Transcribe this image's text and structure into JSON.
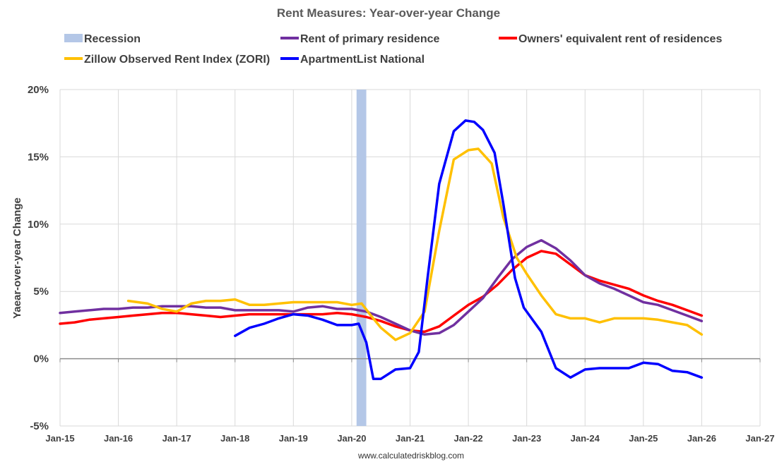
{
  "chart_data": {
    "type": "line",
    "title": "Rent Measures: Year-over-year Change",
    "ylabel": "Yaear-over-year Change",
    "xlabel": "",
    "source": "www.calculatedriskblog.com",
    "ylim": [
      -5,
      20
    ],
    "yticks": [
      -5,
      0,
      5,
      10,
      15,
      20
    ],
    "ytick_labels": [
      "-5%",
      "0%",
      "5%",
      "10%",
      "15%",
      "20%"
    ],
    "xlim": [
      2015,
      2027
    ],
    "xticks": [
      2015,
      2016,
      2017,
      2018,
      2019,
      2020,
      2021,
      2022,
      2023,
      2024,
      2025,
      2026,
      2027
    ],
    "xtick_labels": [
      "Jan-15",
      "Jan-16",
      "Jan-17",
      "Jan-18",
      "Jan-19",
      "Jan-20",
      "Jan-21",
      "Jan-22",
      "Jan-23",
      "Jan-24",
      "Jan-25",
      "Jan-26",
      "Jan-27"
    ],
    "grid": true,
    "recession": {
      "label": "Recession",
      "start": 2020.083,
      "end": 2020.25,
      "color": "#b4c7e7"
    },
    "legend": [
      {
        "label": "Recession",
        "color": "#b4c7e7",
        "kind": "band"
      },
      {
        "label": "Rent of primary residence",
        "color": "#7030a0",
        "kind": "line"
      },
      {
        "label": "Owners' equivalent rent of residences",
        "color": "#ff0000",
        "kind": "line"
      },
      {
        "label": "Zillow Observed Rent Index (ZORI)",
        "color": "#ffc000",
        "kind": "line"
      },
      {
        "label": "ApartmentList National",
        "color": "#0000ff",
        "kind": "line"
      }
    ],
    "series": [
      {
        "name": "Rent of primary residence",
        "color": "#7030a0",
        "points": [
          [
            2015.0,
            3.4
          ],
          [
            2015.25,
            3.5
          ],
          [
            2015.5,
            3.6
          ],
          [
            2015.75,
            3.7
          ],
          [
            2016.0,
            3.7
          ],
          [
            2016.25,
            3.8
          ],
          [
            2016.5,
            3.8
          ],
          [
            2016.75,
            3.9
          ],
          [
            2017.0,
            3.9
          ],
          [
            2017.25,
            3.9
          ],
          [
            2017.5,
            3.8
          ],
          [
            2017.75,
            3.8
          ],
          [
            2018.0,
            3.6
          ],
          [
            2018.25,
            3.6
          ],
          [
            2018.5,
            3.6
          ],
          [
            2018.75,
            3.6
          ],
          [
            2019.0,
            3.5
          ],
          [
            2019.25,
            3.8
          ],
          [
            2019.5,
            3.9
          ],
          [
            2019.75,
            3.7
          ],
          [
            2020.0,
            3.7
          ],
          [
            2020.25,
            3.5
          ],
          [
            2020.5,
            3.1
          ],
          [
            2020.75,
            2.6
          ],
          [
            2021.0,
            2.1
          ],
          [
            2021.25,
            1.8
          ],
          [
            2021.5,
            1.9
          ],
          [
            2021.75,
            2.5
          ],
          [
            2022.0,
            3.5
          ],
          [
            2022.25,
            4.5
          ],
          [
            2022.5,
            6.0
          ],
          [
            2022.75,
            7.4
          ],
          [
            2023.0,
            8.3
          ],
          [
            2023.25,
            8.8
          ],
          [
            2023.5,
            8.2
          ],
          [
            2023.75,
            7.3
          ],
          [
            2024.0,
            6.2
          ],
          [
            2024.25,
            5.6
          ],
          [
            2024.5,
            5.2
          ],
          [
            2024.75,
            4.7
          ],
          [
            2025.0,
            4.2
          ],
          [
            2025.25,
            4.0
          ],
          [
            2025.5,
            3.6
          ],
          [
            2025.75,
            3.2
          ],
          [
            2026.0,
            2.8
          ]
        ]
      },
      {
        "name": "Owners' equivalent rent of residences",
        "color": "#ff0000",
        "points": [
          [
            2015.0,
            2.6
          ],
          [
            2015.25,
            2.7
          ],
          [
            2015.5,
            2.9
          ],
          [
            2015.75,
            3.0
          ],
          [
            2016.0,
            3.1
          ],
          [
            2016.25,
            3.2
          ],
          [
            2016.5,
            3.3
          ],
          [
            2016.75,
            3.4
          ],
          [
            2017.0,
            3.4
          ],
          [
            2017.25,
            3.3
          ],
          [
            2017.5,
            3.2
          ],
          [
            2017.75,
            3.1
          ],
          [
            2018.0,
            3.2
          ],
          [
            2018.25,
            3.3
          ],
          [
            2018.5,
            3.3
          ],
          [
            2018.75,
            3.3
          ],
          [
            2019.0,
            3.3
          ],
          [
            2019.25,
            3.3
          ],
          [
            2019.5,
            3.3
          ],
          [
            2019.75,
            3.4
          ],
          [
            2020.0,
            3.3
          ],
          [
            2020.25,
            3.1
          ],
          [
            2020.5,
            2.8
          ],
          [
            2020.75,
            2.4
          ],
          [
            2021.0,
            2.1
          ],
          [
            2021.25,
            2.0
          ],
          [
            2021.5,
            2.4
          ],
          [
            2021.75,
            3.2
          ],
          [
            2022.0,
            4.0
          ],
          [
            2022.25,
            4.6
          ],
          [
            2022.5,
            5.5
          ],
          [
            2022.75,
            6.6
          ],
          [
            2023.0,
            7.5
          ],
          [
            2023.25,
            8.0
          ],
          [
            2023.5,
            7.8
          ],
          [
            2023.75,
            7.0
          ],
          [
            2024.0,
            6.2
          ],
          [
            2024.25,
            5.8
          ],
          [
            2024.5,
            5.5
          ],
          [
            2024.75,
            5.2
          ],
          [
            2025.0,
            4.7
          ],
          [
            2025.25,
            4.3
          ],
          [
            2025.5,
            4.0
          ],
          [
            2025.75,
            3.6
          ],
          [
            2026.0,
            3.2
          ]
        ]
      },
      {
        "name": "Zillow Observed Rent Index (ZORI)",
        "color": "#ffc000",
        "points": [
          [
            2016.17,
            4.3
          ],
          [
            2016.5,
            4.1
          ],
          [
            2016.75,
            3.7
          ],
          [
            2017.0,
            3.5
          ],
          [
            2017.25,
            4.1
          ],
          [
            2017.5,
            4.3
          ],
          [
            2017.75,
            4.3
          ],
          [
            2018.0,
            4.4
          ],
          [
            2018.25,
            4.0
          ],
          [
            2018.5,
            4.0
          ],
          [
            2018.75,
            4.1
          ],
          [
            2019.0,
            4.2
          ],
          [
            2019.25,
            4.2
          ],
          [
            2019.5,
            4.2
          ],
          [
            2019.75,
            4.2
          ],
          [
            2020.0,
            4.0
          ],
          [
            2020.17,
            4.1
          ],
          [
            2020.33,
            3.2
          ],
          [
            2020.5,
            2.3
          ],
          [
            2020.75,
            1.4
          ],
          [
            2021.0,
            1.9
          ],
          [
            2021.25,
            3.5
          ],
          [
            2021.5,
            9.5
          ],
          [
            2021.75,
            14.8
          ],
          [
            2022.0,
            15.5
          ],
          [
            2022.17,
            15.6
          ],
          [
            2022.4,
            14.5
          ],
          [
            2022.6,
            10.5
          ],
          [
            2022.83,
            7.5
          ],
          [
            2023.0,
            6.3
          ],
          [
            2023.25,
            4.7
          ],
          [
            2023.5,
            3.3
          ],
          [
            2023.75,
            3.0
          ],
          [
            2024.0,
            3.0
          ],
          [
            2024.25,
            2.7
          ],
          [
            2024.5,
            3.0
          ],
          [
            2024.75,
            3.0
          ],
          [
            2025.0,
            3.0
          ],
          [
            2025.25,
            2.9
          ],
          [
            2025.5,
            2.7
          ],
          [
            2025.75,
            2.5
          ],
          [
            2026.0,
            1.8
          ]
        ]
      },
      {
        "name": "ApartmentList National",
        "color": "#0000ff",
        "points": [
          [
            2018.0,
            1.7
          ],
          [
            2018.25,
            2.3
          ],
          [
            2018.5,
            2.6
          ],
          [
            2018.75,
            3.0
          ],
          [
            2019.0,
            3.3
          ],
          [
            2019.25,
            3.2
          ],
          [
            2019.5,
            2.9
          ],
          [
            2019.75,
            2.5
          ],
          [
            2020.0,
            2.5
          ],
          [
            2020.12,
            2.6
          ],
          [
            2020.25,
            1.2
          ],
          [
            2020.37,
            -1.5
          ],
          [
            2020.5,
            -1.5
          ],
          [
            2020.75,
            -0.8
          ],
          [
            2021.0,
            -0.7
          ],
          [
            2021.15,
            0.5
          ],
          [
            2021.3,
            6.0
          ],
          [
            2021.5,
            13.0
          ],
          [
            2021.75,
            16.9
          ],
          [
            2021.95,
            17.7
          ],
          [
            2022.1,
            17.6
          ],
          [
            2022.25,
            17.0
          ],
          [
            2022.45,
            15.3
          ],
          [
            2022.6,
            11.5
          ],
          [
            2022.8,
            6.0
          ],
          [
            2022.95,
            3.8
          ],
          [
            2023.25,
            2.0
          ],
          [
            2023.5,
            -0.7
          ],
          [
            2023.75,
            -1.4
          ],
          [
            2024.0,
            -0.8
          ],
          [
            2024.25,
            -0.7
          ],
          [
            2024.5,
            -0.7
          ],
          [
            2024.75,
            -0.7
          ],
          [
            2025.0,
            -0.3
          ],
          [
            2025.25,
            -0.4
          ],
          [
            2025.5,
            -0.9
          ],
          [
            2025.75,
            -1.0
          ],
          [
            2026.0,
            -1.4
          ]
        ]
      }
    ]
  }
}
